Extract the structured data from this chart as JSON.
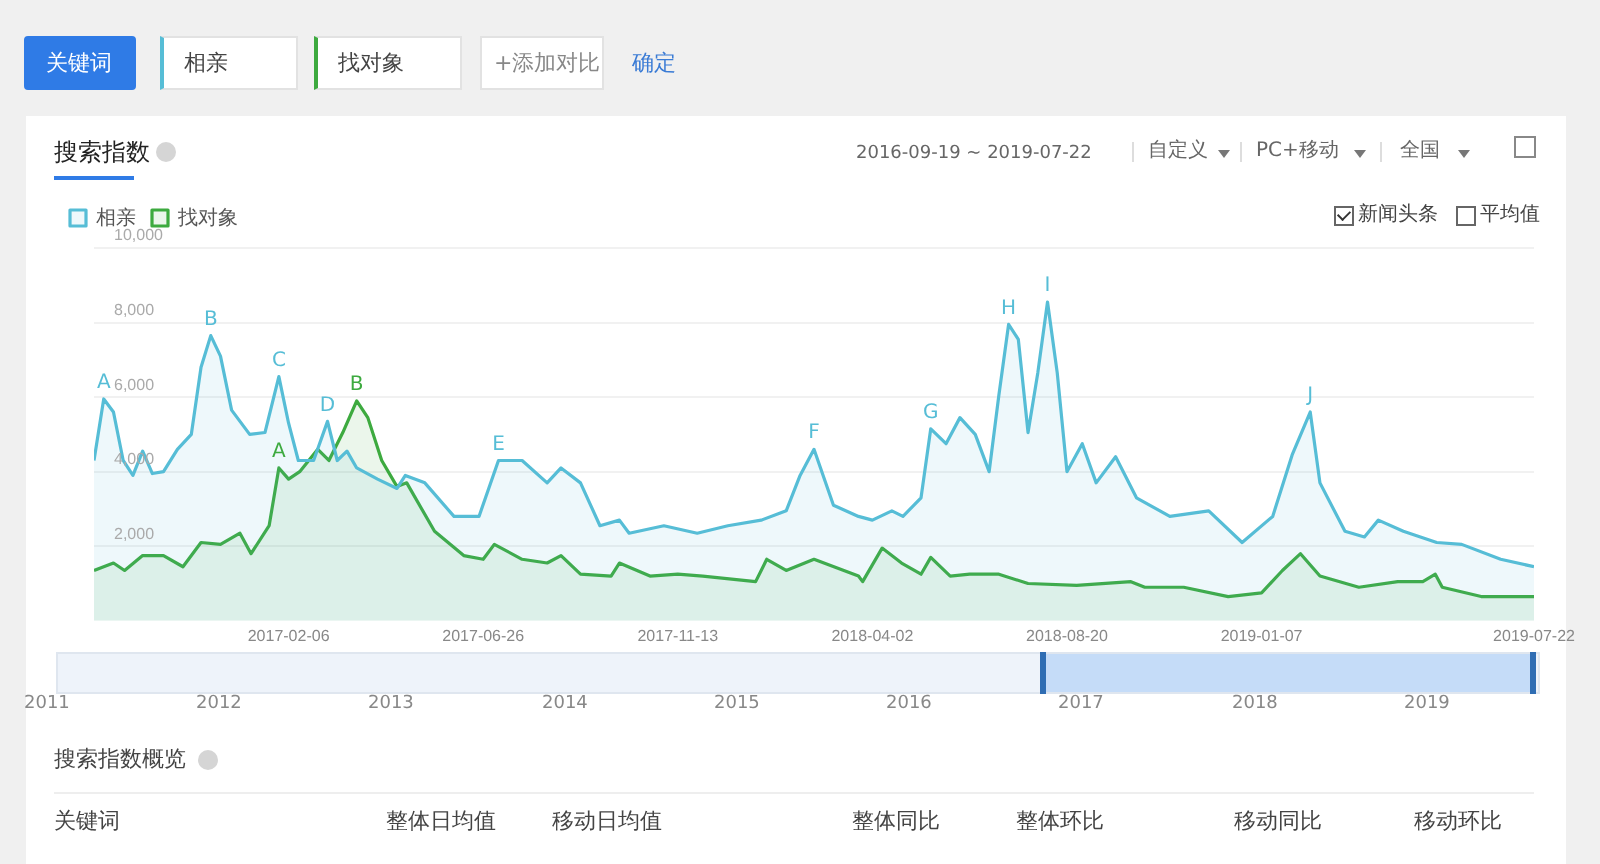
{
  "chart_data": {
    "type": "area",
    "title": "搜索指数",
    "xlim": [
      "2016-09-19",
      "2019-07-22"
    ],
    "xticks": [
      "2017-02-06",
      "2017-06-26",
      "2017-11-13",
      "2018-04-02",
      "2018-08-20",
      "2019-01-07",
      "2019-07-22"
    ],
    "ylim": [
      0,
      10000
    ],
    "yticks": [
      {
        "value": 2000,
        "label": "2,000"
      },
      {
        "value": 4000,
        "label": "4,000"
      },
      {
        "value": 6000,
        "label": "6,000"
      },
      {
        "value": 8000,
        "label": "8,000"
      },
      {
        "value": 10000,
        "label": "10,000"
      }
    ],
    "grid": "y",
    "legend": "top left",
    "series": [
      {
        "name": "相亲",
        "color": "#56bdd6",
        "x": [
          "2016-09-19",
          "2016-09-26",
          "2016-10-03",
          "2016-10-10",
          "2016-10-17",
          "2016-10-24",
          "2016-10-31",
          "2016-11-08",
          "2016-11-18",
          "2016-11-28",
          "2016-12-05",
          "2016-12-12",
          "2016-12-19",
          "2016-12-27",
          "2017-01-09",
          "2017-01-20",
          "2017-01-30",
          "2017-02-06",
          "2017-02-13",
          "2017-02-24",
          "2017-03-06",
          "2017-03-13",
          "2017-03-20",
          "2017-03-27",
          "2017-04-11",
          "2017-04-25",
          "2017-05-01",
          "2017-05-15",
          "2017-06-05",
          "2017-06-23",
          "2017-07-07",
          "2017-07-24",
          "2017-08-11",
          "2017-08-21",
          "2017-09-04",
          "2017-09-18",
          "2017-10-02",
          "2017-10-09",
          "2017-11-03",
          "2017-11-27",
          "2017-12-19",
          "2018-01-12",
          "2018-01-30",
          "2018-02-09",
          "2018-02-19",
          "2018-03-05",
          "2018-03-23",
          "2018-04-02",
          "2018-04-16",
          "2018-04-24",
          "2018-05-07",
          "2018-05-14",
          "2018-05-25",
          "2018-06-04",
          "2018-06-15",
          "2018-06-25",
          "2018-07-02",
          "2018-07-09",
          "2018-07-16",
          "2018-07-23",
          "2018-07-30",
          "2018-08-06",
          "2018-08-13",
          "2018-08-20",
          "2018-08-31",
          "2018-09-10",
          "2018-09-24",
          "2018-10-09",
          "2018-11-02",
          "2018-11-30",
          "2018-12-24",
          "2019-01-15",
          "2019-01-29",
          "2019-02-11",
          "2019-02-18",
          "2019-03-08",
          "2019-03-22",
          "2019-04-01",
          "2019-04-19",
          "2019-05-13",
          "2019-05-31",
          "2019-06-28",
          "2019-07-22"
        ],
        "values": [
          4300,
          5950,
          5600,
          4300,
          3900,
          4550,
          3950,
          4000,
          4600,
          5000,
          6800,
          7650,
          7100,
          5650,
          5000,
          5050,
          6550,
          5300,
          4300,
          4300,
          5350,
          4300,
          4550,
          4100,
          3800,
          3550,
          3900,
          3700,
          2800,
          2800,
          4300,
          4300,
          3700,
          4100,
          3700,
          2550,
          2700,
          2350,
          2550,
          2350,
          2550,
          2700,
          2950,
          3900,
          4600,
          3100,
          2800,
          2700,
          2950,
          2800,
          3300,
          5150,
          4750,
          5450,
          5000,
          4000,
          6050,
          7950,
          7550,
          5050,
          6650,
          8550,
          6650,
          4000,
          4750,
          3700,
          4400,
          3300,
          2800,
          2950,
          2100,
          2800,
          4450,
          5600,
          3700,
          2400,
          2250,
          2700,
          2400,
          2100,
          2050,
          1650,
          1450
        ]
      },
      {
        "name": "找对象",
        "color": "#3daa3f",
        "x": [
          "2016-09-19",
          "2016-10-03",
          "2016-10-11",
          "2016-10-24",
          "2016-11-08",
          "2016-11-22",
          "2016-12-05",
          "2016-12-19",
          "2017-01-02",
          "2017-01-10",
          "2017-01-23",
          "2017-01-30",
          "2017-02-06",
          "2017-02-14",
          "2017-02-27",
          "2017-03-07",
          "2017-03-17",
          "2017-03-27",
          "2017-04-04",
          "2017-04-14",
          "2017-04-25",
          "2017-05-02",
          "2017-05-22",
          "2017-06-12",
          "2017-06-26",
          "2017-07-04",
          "2017-07-24",
          "2017-08-11",
          "2017-08-21",
          "2017-09-04",
          "2017-09-26",
          "2017-10-02",
          "2017-10-24",
          "2017-11-13",
          "2017-12-01",
          "2018-01-08",
          "2018-01-16",
          "2018-01-30",
          "2018-02-19",
          "2018-03-23",
          "2018-03-26",
          "2018-04-09",
          "2018-04-23",
          "2018-05-07",
          "2018-05-14",
          "2018-05-28",
          "2018-06-11",
          "2018-07-02",
          "2018-07-23",
          "2018-08-27",
          "2018-10-05",
          "2018-10-15",
          "2018-11-12",
          "2018-12-14",
          "2019-01-07",
          "2019-01-22",
          "2019-02-04",
          "2019-02-18",
          "2019-03-18",
          "2019-04-15",
          "2019-05-03",
          "2019-05-12",
          "2019-05-17",
          "2019-06-14",
          "2019-07-22"
        ],
        "values": [
          1350,
          1550,
          1350,
          1750,
          1750,
          1450,
          2100,
          2050,
          2350,
          1800,
          2550,
          4100,
          3800,
          4000,
          4600,
          4300,
          5050,
          5900,
          5450,
          4300,
          3600,
          3700,
          2400,
          1750,
          1650,
          2050,
          1650,
          1550,
          1750,
          1250,
          1200,
          1550,
          1200,
          1250,
          1200,
          1050,
          1650,
          1350,
          1650,
          1200,
          1050,
          1950,
          1550,
          1250,
          1700,
          1200,
          1250,
          1250,
          1000,
          950,
          1050,
          900,
          900,
          650,
          750,
          1350,
          1800,
          1200,
          900,
          1050,
          1050,
          1250,
          900,
          650,
          650
        ]
      }
    ],
    "annotations": [
      "关键词",
      "+添加对比",
      "确定",
      "2016-09-19 ~ 2019-07-22",
      "自定义",
      "PC+移动",
      "全国",
      "新闻头条",
      "平均值",
      "2011",
      "2012",
      "2013",
      "2014",
      "2015",
      "2016",
      "2017",
      "2018",
      "2019",
      "搜索指数概览",
      "关键词",
      "整体日均值",
      "移动日均值",
      "整体同比",
      "整体环比",
      "移动同比",
      "移动环比",
      {
        "text": "A",
        "x": "2016-09-26",
        "y": 5950
      },
      {
        "text": "B",
        "x": "2016-12-12",
        "y": 7650
      },
      {
        "text": "C",
        "x": "2017-01-30",
        "y": 6550
      },
      {
        "text": "D",
        "x": "2017-03-06",
        "y": 5350
      },
      {
        "text": "E",
        "x": "2017-07-07",
        "y": 4300
      },
      {
        "text": "F",
        "x": "2018-02-19",
        "y": 4600
      },
      {
        "text": "G",
        "x": "2018-05-14",
        "y": 5150
      },
      {
        "text": "H",
        "x": "2018-07-09",
        "y": 7950
      },
      {
        "text": "I",
        "x": "2018-08-06",
        "y": 8550
      },
      {
        "text": "J",
        "x": "2019-02-11",
        "y": 5600
      },
      {
        "text": "A",
        "x": "2017-01-30",
        "y": 4100
      },
      {
        "text": "B",
        "x": "2017-03-27",
        "y": 5900
      }
    ]
  }
}
